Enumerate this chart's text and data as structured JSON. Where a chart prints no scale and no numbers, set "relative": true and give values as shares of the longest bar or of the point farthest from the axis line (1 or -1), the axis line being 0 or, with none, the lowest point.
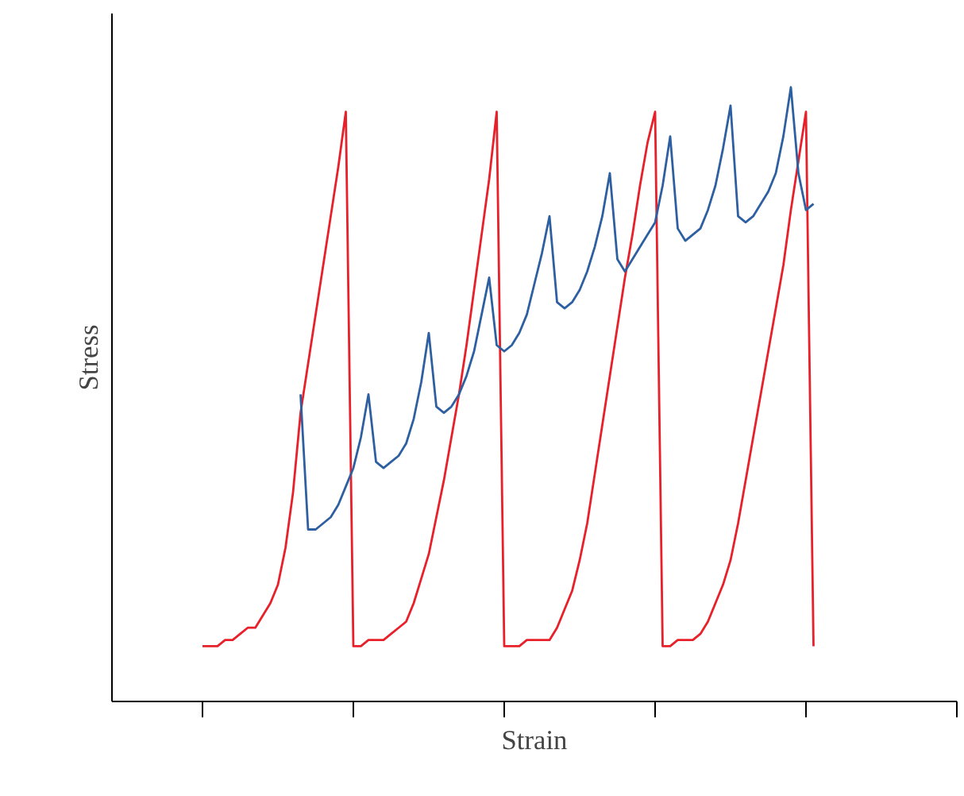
{
  "chart_data": {
    "type": "line",
    "relative": true,
    "xlabel": "Strain",
    "ylabel": "Stress",
    "marker": "none",
    "line_style": "solid",
    "categories": [
      null,
      null,
      null,
      null,
      null,
      null,
      null,
      null,
      null,
      null,
      null,
      null,
      null,
      null,
      null,
      null,
      null,
      null,
      null,
      null,
      null,
      null,
      null,
      null,
      null,
      null,
      null,
      null,
      null,
      null,
      null,
      null,
      null,
      null,
      null,
      null,
      null,
      null,
      null,
      null,
      null,
      null,
      null,
      null,
      null,
      null,
      null,
      null,
      null,
      null,
      null,
      null,
      null,
      null,
      null,
      null,
      null,
      null,
      null,
      null,
      null,
      null,
      null,
      null,
      null,
      null,
      null,
      null,
      null,
      null,
      null,
      null,
      null,
      null,
      null,
      null,
      null,
      null,
      null,
      null,
      null,
      null
    ],
    "series": [
      {
        "color": "#e8202a",
        "values": [
          0.09,
          0.09,
          0.09,
          0.1,
          0.1,
          0.11,
          0.12,
          0.12,
          0.14,
          0.16,
          0.19,
          0.25,
          0.34,
          0.47,
          0.55,
          0.63,
          0.71,
          0.79,
          0.87,
          0.96,
          0.09,
          0.09,
          0.1,
          0.1,
          0.1,
          0.11,
          0.12,
          0.13,
          0.16,
          0.2,
          0.24,
          0.3,
          0.36,
          0.43,
          0.5,
          0.58,
          0.67,
          0.76,
          0.85,
          0.96,
          0.09,
          0.09,
          0.09,
          0.1,
          0.1,
          0.1,
          0.1,
          0.12,
          0.15,
          0.18,
          0.23,
          0.29,
          0.37,
          0.45,
          0.53,
          0.61,
          0.69,
          0.76,
          0.84,
          0.91,
          0.96,
          0.09,
          0.09,
          0.1,
          0.1,
          0.1,
          0.11,
          0.13,
          0.16,
          0.19,
          0.23,
          0.29,
          0.36,
          0.43,
          0.5,
          0.57,
          0.64,
          0.71,
          0.8,
          0.88,
          0.96,
          0.09
        ]
      },
      {
        "color": "#2e5fa0",
        "values": [
          null,
          null,
          null,
          null,
          null,
          null,
          null,
          null,
          null,
          null,
          null,
          null,
          null,
          0.5,
          0.28,
          0.28,
          0.29,
          0.3,
          0.32,
          0.35,
          0.38,
          0.43,
          0.5,
          0.39,
          0.38,
          0.39,
          0.4,
          0.42,
          0.46,
          0.52,
          0.6,
          0.48,
          0.47,
          0.48,
          0.5,
          0.53,
          0.57,
          0.63,
          0.69,
          0.58,
          0.57,
          0.58,
          0.6,
          0.63,
          0.68,
          0.73,
          0.79,
          0.65,
          0.64,
          0.65,
          0.67,
          0.7,
          0.74,
          0.79,
          0.86,
          0.72,
          0.7,
          0.72,
          0.74,
          0.76,
          0.78,
          0.84,
          0.92,
          0.77,
          0.75,
          0.76,
          0.77,
          0.8,
          0.84,
          0.9,
          0.97,
          0.79,
          0.78,
          0.79,
          0.81,
          0.83,
          0.86,
          0.92,
          1.0,
          0.86,
          0.8,
          0.81
        ]
      }
    ]
  }
}
